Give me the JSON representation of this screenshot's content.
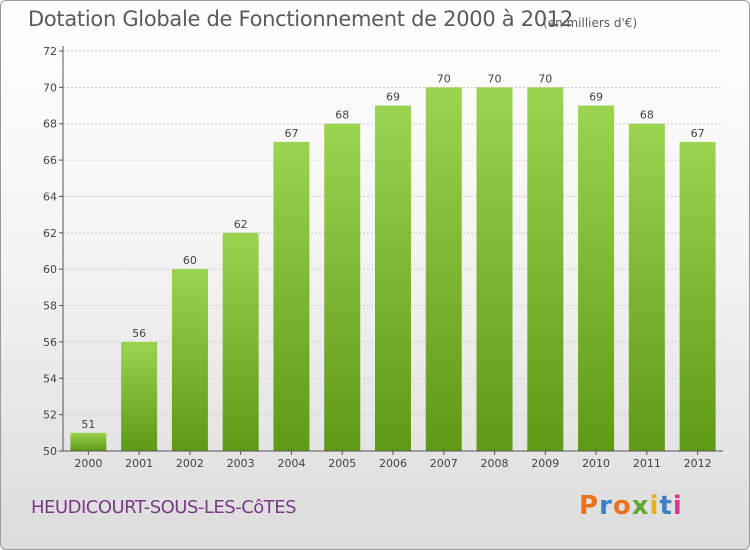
{
  "title": "Dotation Globale de Fonctionnement de 2000 à 2012",
  "unit": "(en milliers d'€)",
  "commune": "HEUDICOURT-SOUS-LES-CôTES",
  "logo": {
    "text": "Proxiti",
    "colors": [
      "#e8731f",
      "#3d7fc1",
      "#e8731f",
      "#5da832",
      "#e2b21b",
      "#3d7fc1",
      "#d9388f"
    ]
  },
  "colors": {
    "bar_top": "#9bd44f",
    "bar_bottom": "#5f9a14",
    "grid": "#cccccc"
  },
  "chart_data": {
    "type": "bar",
    "title": "Dotation Globale de Fonctionnement de 2000 à 2012",
    "subtitle": "(en milliers d'€)",
    "categories": [
      "2000",
      "2001",
      "2002",
      "2003",
      "2004",
      "2005",
      "2006",
      "2007",
      "2008",
      "2009",
      "2010",
      "2011",
      "2012"
    ],
    "values": [
      51,
      56,
      60,
      62,
      67,
      68,
      69,
      70,
      70,
      70,
      69,
      68,
      67
    ],
    "ylim": [
      50,
      72
    ],
    "yticks": [
      50,
      52,
      54,
      56,
      58,
      60,
      62,
      64,
      66,
      68,
      70,
      72
    ],
    "grid": true,
    "legend": "none"
  }
}
